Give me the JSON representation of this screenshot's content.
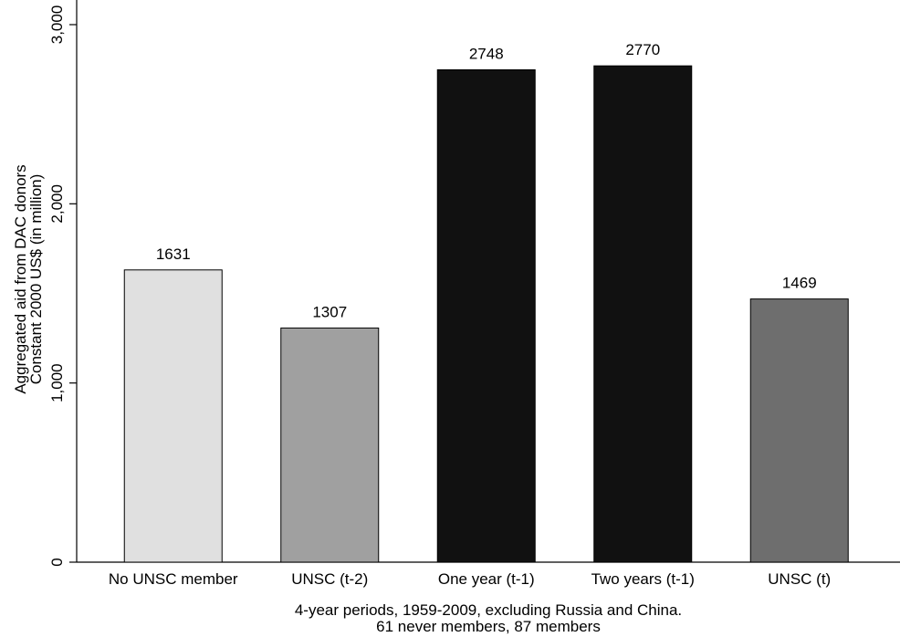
{
  "chart_data": {
    "type": "bar",
    "categories": [
      "No UNSC member",
      "UNSC (t-2)",
      "One year (t-1)",
      "Two years (t-1)",
      "UNSC (t)"
    ],
    "values": [
      1631,
      1307,
      2748,
      2770,
      1469
    ],
    "data_labels": [
      "1631",
      "1307",
      "2748",
      "2770",
      "1469"
    ],
    "bar_colors": [
      "#e0e0e0",
      "#a0a0a0",
      "#111111",
      "#111111",
      "#6e6e6e"
    ],
    "ylabel_lines": [
      "Aggregated aid from DAC donors",
      "Constant 2000 US$ (in million)"
    ],
    "xlabel_lines": [
      "4-year periods, 1959-2009, excluding Russia and China.",
      "61 never members, 87 members"
    ],
    "yticks": [
      0,
      1000,
      2000,
      3000
    ],
    "ytick_labels": [
      "0",
      "1,000",
      "2,000",
      "3,000"
    ],
    "ylim": [
      0,
      3000
    ],
    "grid": false,
    "legend": "none"
  }
}
